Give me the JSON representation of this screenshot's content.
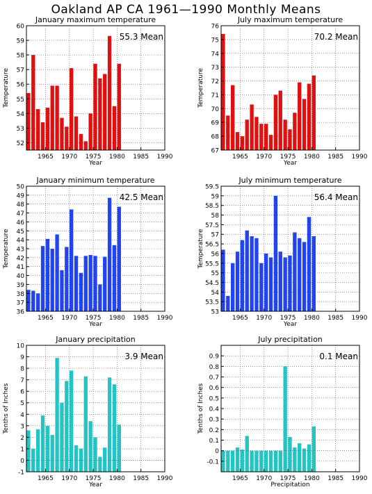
{
  "page_title": "Oakland AP CA  1961—1990 Monthly Means",
  "colors": {
    "tmax": "#e01010",
    "tmin": "#2244ee",
    "prcp": "#22c4c4"
  },
  "chart_data": [
    {
      "type": "bar",
      "title": "January maximum temperature",
      "ylabel": "Temperature",
      "xlabel": "Year",
      "mean_label": "55.3 Mean",
      "ylim": [
        51.5,
        60
      ],
      "yticks": [
        52,
        53,
        54,
        55,
        56,
        57,
        58,
        59,
        60
      ],
      "xlim": [
        1961,
        1990
      ],
      "xticks": [
        1965,
        1970,
        1975,
        1980,
        1985,
        1990
      ],
      "color_key": "tmax",
      "x": [
        1961,
        1962,
        1963,
        1964,
        1965,
        1966,
        1967,
        1968,
        1969,
        1970,
        1971,
        1972,
        1973,
        1974,
        1975,
        1976,
        1977,
        1978,
        1979,
        1980
      ],
      "values": [
        55.4,
        58.0,
        54.3,
        53.4,
        54.4,
        55.9,
        55.9,
        53.7,
        53.1,
        57.1,
        53.8,
        52.6,
        52.1,
        54.0,
        57.4,
        56.4,
        56.7,
        59.3,
        54.5,
        57.4
      ]
    },
    {
      "type": "bar",
      "title": "July maximum temperature",
      "ylabel": "Temperature",
      "xlabel": "Year",
      "mean_label": "70.2 Mean",
      "ylim": [
        67,
        76
      ],
      "yticks": [
        67,
        68,
        69,
        70,
        71,
        72,
        73,
        74,
        75,
        76
      ],
      "xlim": [
        1961,
        1990
      ],
      "xticks": [
        1965,
        1970,
        1975,
        1980,
        1985,
        1990
      ],
      "color_key": "tmax",
      "x": [
        1961,
        1962,
        1963,
        1964,
        1965,
        1966,
        1967,
        1968,
        1969,
        1970,
        1971,
        1972,
        1973,
        1974,
        1975,
        1976,
        1977,
        1978,
        1979,
        1980
      ],
      "values": [
        75.4,
        69.5,
        71.7,
        68.3,
        68.0,
        69.2,
        70.3,
        69.4,
        68.9,
        68.9,
        68.1,
        71.0,
        71.3,
        69.2,
        68.5,
        69.7,
        71.9,
        70.7,
        71.8,
        72.4
      ]
    },
    {
      "type": "bar",
      "title": "January minimum temperature",
      "ylabel": "Temperature",
      "xlabel": "Year",
      "mean_label": "42.5 Mean",
      "ylim": [
        36,
        50
      ],
      "yticks": [
        36,
        37,
        38,
        39,
        40,
        41,
        42,
        43,
        44,
        45,
        46,
        47,
        48,
        49,
        50
      ],
      "xlim": [
        1961,
        1990
      ],
      "xticks": [
        1965,
        1970,
        1975,
        1980,
        1985,
        1990
      ],
      "color_key": "tmin",
      "x": [
        1961,
        1962,
        1963,
        1964,
        1965,
        1966,
        1967,
        1968,
        1969,
        1970,
        1971,
        1972,
        1973,
        1974,
        1975,
        1976,
        1977,
        1978,
        1979,
        1980
      ],
      "values": [
        38.4,
        38.3,
        38.0,
        43.3,
        44.1,
        43.0,
        44.6,
        40.6,
        43.2,
        47.4,
        42.2,
        40.3,
        42.2,
        42.3,
        42.2,
        39.0,
        42.1,
        48.7,
        43.4,
        47.7
      ]
    },
    {
      "type": "bar",
      "title": "July minimum temperature",
      "ylabel": "Temperature",
      "xlabel": "Year",
      "mean_label": "56.4 Mean",
      "ylim": [
        53,
        59.5
      ],
      "yticks": [
        53,
        53.5,
        54,
        54.5,
        55,
        55.5,
        56,
        56.5,
        57,
        57.5,
        58,
        58.5,
        59,
        59.5
      ],
      "xlim": [
        1961,
        1990
      ],
      "xticks": [
        1965,
        1970,
        1975,
        1980,
        1985,
        1990
      ],
      "color_key": "tmin",
      "x": [
        1961,
        1962,
        1963,
        1964,
        1965,
        1966,
        1967,
        1968,
        1969,
        1970,
        1971,
        1972,
        1973,
        1974,
        1975,
        1976,
        1977,
        1978,
        1979,
        1980
      ],
      "values": [
        56.2,
        53.8,
        55.5,
        56.1,
        56.7,
        57.2,
        56.9,
        56.8,
        55.5,
        56.0,
        55.8,
        59.0,
        56.1,
        55.8,
        55.9,
        57.1,
        56.8,
        56.6,
        57.9,
        56.9
      ]
    },
    {
      "type": "bar",
      "title": "January precipitation",
      "ylabel": "Tenths of Inches",
      "xlabel": "Year",
      "mean_label": "3.9 Mean",
      "ylim": [
        -1,
        10
      ],
      "yticks": [
        -1,
        0,
        1,
        2,
        3,
        4,
        5,
        6,
        7,
        8,
        9,
        10
      ],
      "xlim": [
        1961,
        1990
      ],
      "xticks": [
        1965,
        1970,
        1975,
        1980,
        1985,
        1990
      ],
      "color_key": "prcp",
      "x": [
        1961,
        1962,
        1963,
        1964,
        1965,
        1966,
        1967,
        1968,
        1969,
        1970,
        1971,
        1972,
        1973,
        1974,
        1975,
        1976,
        1977,
        1978,
        1979,
        1980
      ],
      "values": [
        2.6,
        1.0,
        2.7,
        3.9,
        3.0,
        2.2,
        8.9,
        5.0,
        6.9,
        7.8,
        1.3,
        1.0,
        7.3,
        3.4,
        2.0,
        0.3,
        1.1,
        7.2,
        6.6,
        3.1
      ]
    },
    {
      "type": "bar",
      "title": "July precipitation",
      "ylabel": "Tenths of Inches",
      "xlabel": "Precipitation",
      "mean_label": "0.1 Mean",
      "ylim": [
        -0.2,
        1.0
      ],
      "yticks": [
        -0.1,
        0,
        0.1,
        0.2,
        0.3,
        0.4,
        0.5,
        0.6,
        0.7,
        0.8,
        0.9
      ],
      "xlim": [
        1961,
        1990
      ],
      "xticks": [
        1965,
        1970,
        1975,
        1980,
        1985,
        1990
      ],
      "color_key": "prcp",
      "x": [
        1961,
        1962,
        1963,
        1964,
        1965,
        1966,
        1967,
        1968,
        1969,
        1970,
        1971,
        1972,
        1973,
        1974,
        1975,
        1976,
        1977,
        1978,
        1979,
        1980
      ],
      "values": [
        0.0,
        0.0,
        0.0,
        0.03,
        0.01,
        0.14,
        0.0,
        0.0,
        0.0,
        0.0,
        0.0,
        0.0,
        0.0,
        0.8,
        0.13,
        0.03,
        0.07,
        0.02,
        0.06,
        0.23
      ]
    }
  ]
}
